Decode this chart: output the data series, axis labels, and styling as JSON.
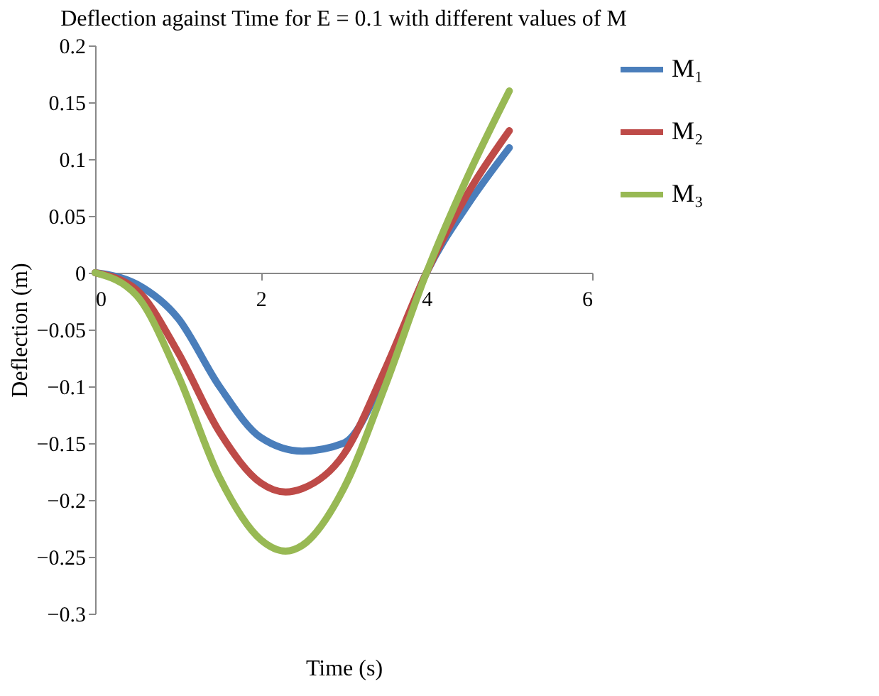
{
  "chart_data": {
    "type": "line",
    "title": "Deflection against Time for E = 0.1 with different values of M",
    "xlabel": "Time (s)",
    "ylabel": "Deflection (m)",
    "xlim": [
      0,
      6
    ],
    "xticks": [
      0,
      2,
      4,
      6
    ],
    "ylim": [
      -0.3,
      0.2
    ],
    "yticks": [
      -0.3,
      -0.25,
      -0.2,
      -0.15,
      -0.1,
      -0.05,
      0,
      0.05,
      0.1,
      0.15,
      0.2
    ],
    "grid": false,
    "legend": "right",
    "marker": "none",
    "line_style": "solid",
    "series": [
      {
        "name": "M₁",
        "color": "#4a7ebb",
        "x": [
          0,
          0.5,
          1,
          1.5,
          2,
          2.5,
          3,
          3.5,
          4,
          4.5,
          5
        ],
        "values": [
          0,
          -0.01,
          -0.04,
          -0.1,
          -0.145,
          -0.157,
          -0.15,
          -0.09,
          0,
          0.06,
          0.11
        ]
      },
      {
        "name": "M₂",
        "color": "#be4b48",
        "x": [
          0,
          0.5,
          1,
          1.5,
          2,
          2.3,
          2.5,
          3,
          3.5,
          4,
          4.5,
          5
        ],
        "values": [
          0,
          -0.015,
          -0.07,
          -0.14,
          -0.185,
          -0.193,
          -0.19,
          -0.16,
          -0.085,
          0,
          0.07,
          0.125
        ]
      },
      {
        "name": "M₃",
        "color": "#98b954",
        "x": [
          0,
          0.5,
          1,
          1.5,
          2,
          2.3,
          2.5,
          3,
          3.5,
          4,
          4.5,
          5
        ],
        "values": [
          0,
          -0.02,
          -0.09,
          -0.18,
          -0.235,
          -0.245,
          -0.24,
          -0.19,
          -0.1,
          0,
          0.085,
          0.16
        ]
      }
    ]
  }
}
